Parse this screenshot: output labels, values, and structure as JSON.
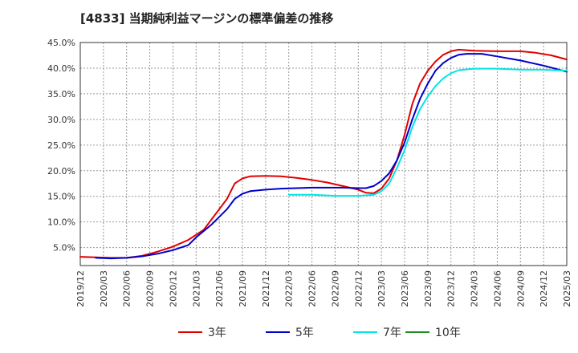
{
  "chart_data": {
    "type": "line",
    "title": "[4833]  当期純利益マージンの標準偏差の推移",
    "xlabel": "",
    "ylabel": "",
    "ylim": [
      1.5,
      45.0
    ],
    "grid": true,
    "legend_position": "bottom",
    "y_ticks": [
      "5.0%",
      "10.0%",
      "15.0%",
      "20.0%",
      "25.0%",
      "30.0%",
      "35.0%",
      "40.0%",
      "45.0%"
    ],
    "x_ticks": [
      "2019/12",
      "2020/03",
      "2020/06",
      "2020/09",
      "2020/12",
      "2021/03",
      "2021/06",
      "2021/09",
      "2021/12",
      "2022/03",
      "2022/06",
      "2022/09",
      "2022/12",
      "2023/03",
      "2023/06",
      "2023/09",
      "2023/12",
      "2024/03",
      "2024/06",
      "2024/09",
      "2024/12",
      "2025/03"
    ],
    "series": [
      {
        "name": "3年",
        "color": "#e00000",
        "points": [
          [
            "2019/12",
            3.2
          ],
          [
            "2020/02",
            3.1
          ],
          [
            "2020/04",
            3.0
          ],
          [
            "2020/06",
            3.0
          ],
          [
            "2020/08",
            3.4
          ],
          [
            "2020/10",
            4.2
          ],
          [
            "2020/12",
            5.2
          ],
          [
            "2021/02",
            6.5
          ],
          [
            "2021/04",
            8.5
          ],
          [
            "2021/05",
            10.5
          ],
          [
            "2021/07",
            14.5
          ],
          [
            "2021/08",
            17.5
          ],
          [
            "2021/09",
            18.5
          ],
          [
            "2021/10",
            18.9
          ],
          [
            "2021/12",
            19.0
          ],
          [
            "2022/02",
            18.9
          ],
          [
            "2022/04",
            18.6
          ],
          [
            "2022/06",
            18.2
          ],
          [
            "2022/08",
            17.7
          ],
          [
            "2022/10",
            17.0
          ],
          [
            "2022/12",
            16.3
          ],
          [
            "2023/01",
            15.7
          ],
          [
            "2023/02",
            15.6
          ],
          [
            "2023/03",
            16.5
          ],
          [
            "2023/04",
            18.5
          ],
          [
            "2023/05",
            22.0
          ],
          [
            "2023/06",
            27.0
          ],
          [
            "2023/07",
            33.0
          ],
          [
            "2023/08",
            37.0
          ],
          [
            "2023/09",
            39.5
          ],
          [
            "2023/10",
            41.3
          ],
          [
            "2023/11",
            42.6
          ],
          [
            "2023/12",
            43.3
          ],
          [
            "2024/01",
            43.6
          ],
          [
            "2024/03",
            43.4
          ],
          [
            "2024/06",
            43.3
          ],
          [
            "2024/09",
            43.3
          ],
          [
            "2024/11",
            43.0
          ],
          [
            "2025/01",
            42.5
          ],
          [
            "2025/03",
            41.7
          ]
        ]
      },
      {
        "name": "5年",
        "color": "#0000cc",
        "points": [
          [
            "2020/02",
            3.0
          ],
          [
            "2020/04",
            2.9
          ],
          [
            "2020/06",
            3.0
          ],
          [
            "2020/08",
            3.3
          ],
          [
            "2020/10",
            3.8
          ],
          [
            "2020/12",
            4.5
          ],
          [
            "2021/02",
            5.5
          ],
          [
            "2021/03",
            7.0
          ],
          [
            "2021/05",
            9.5
          ],
          [
            "2021/07",
            12.5
          ],
          [
            "2021/08",
            14.5
          ],
          [
            "2021/09",
            15.5
          ],
          [
            "2021/10",
            16.0
          ],
          [
            "2021/12",
            16.3
          ],
          [
            "2022/02",
            16.5
          ],
          [
            "2022/04",
            16.6
          ],
          [
            "2022/06",
            16.7
          ],
          [
            "2022/08",
            16.7
          ],
          [
            "2022/10",
            16.7
          ],
          [
            "2022/12",
            16.6
          ],
          [
            "2023/01",
            16.6
          ],
          [
            "2023/02",
            17.0
          ],
          [
            "2023/03",
            18.0
          ],
          [
            "2023/04",
            19.5
          ],
          [
            "2023/05",
            22.0
          ],
          [
            "2023/06",
            25.5
          ],
          [
            "2023/07",
            30.0
          ],
          [
            "2023/08",
            34.0
          ],
          [
            "2023/09",
            37.0
          ],
          [
            "2023/10",
            39.5
          ],
          [
            "2023/11",
            41.0
          ],
          [
            "2023/12",
            42.0
          ],
          [
            "2024/01",
            42.6
          ],
          [
            "2024/02",
            42.8
          ],
          [
            "2024/04",
            42.8
          ],
          [
            "2024/06",
            42.3
          ],
          [
            "2024/09",
            41.5
          ],
          [
            "2024/12",
            40.5
          ],
          [
            "2025/03",
            39.3
          ]
        ]
      },
      {
        "name": "7年",
        "color": "#00e5e5",
        "points": [
          [
            "2022/03",
            15.3
          ],
          [
            "2022/06",
            15.3
          ],
          [
            "2022/09",
            15.1
          ],
          [
            "2022/12",
            15.1
          ],
          [
            "2023/02",
            15.3
          ],
          [
            "2023/03",
            16.0
          ],
          [
            "2023/04",
            17.5
          ],
          [
            "2023/05",
            20.5
          ],
          [
            "2023/06",
            24.0
          ],
          [
            "2023/07",
            28.5
          ],
          [
            "2023/08",
            32.0
          ],
          [
            "2023/09",
            34.5
          ],
          [
            "2023/10",
            36.5
          ],
          [
            "2023/11",
            38.0
          ],
          [
            "2023/12",
            39.0
          ],
          [
            "2024/01",
            39.6
          ],
          [
            "2024/03",
            39.9
          ],
          [
            "2024/06",
            39.9
          ],
          [
            "2024/09",
            39.7
          ],
          [
            "2024/12",
            39.7
          ],
          [
            "2025/03",
            39.5
          ]
        ]
      },
      {
        "name": "10年",
        "color": "#228b22",
        "points": []
      }
    ]
  }
}
